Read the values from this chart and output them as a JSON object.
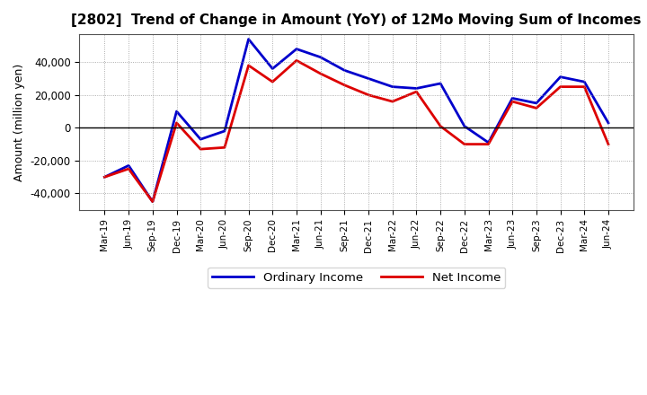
{
  "title": "[2802]  Trend of Change in Amount (YoY) of 12Mo Moving Sum of Incomes",
  "ylabel": "Amount (million yen)",
  "x_labels": [
    "Mar-19",
    "Jun-19",
    "Sep-19",
    "Dec-19",
    "Mar-20",
    "Jun-20",
    "Sep-20",
    "Dec-20",
    "Mar-21",
    "Jun-21",
    "Sep-21",
    "Dec-21",
    "Mar-22",
    "Jun-22",
    "Sep-22",
    "Dec-22",
    "Mar-23",
    "Jun-23",
    "Sep-23",
    "Dec-23",
    "Mar-24",
    "Jun-24"
  ],
  "ordinary_income": [
    -30000,
    -23000,
    -45000,
    10000,
    -7000,
    -2000,
    54000,
    36000,
    48000,
    43000,
    35000,
    30000,
    25000,
    24000,
    27000,
    1000,
    -9000,
    18000,
    15000,
    31000,
    28000,
    3000
  ],
  "net_income": [
    -30000,
    -25000,
    -45000,
    3000,
    -13000,
    -12000,
    38000,
    28000,
    41000,
    33000,
    26000,
    20000,
    16000,
    22000,
    1000,
    -10000,
    -10000,
    16000,
    12000,
    25000,
    25000,
    -10000
  ],
  "ordinary_income_color": "#0000cc",
  "net_income_color": "#dd0000",
  "ylim": [
    -50000,
    57000
  ],
  "yticks": [
    -40000,
    -20000,
    0,
    20000,
    40000
  ],
  "background_color": "#ffffff",
  "plot_bg_color": "#ffffff",
  "grid_color": "#999999",
  "legend_labels": [
    "Ordinary Income",
    "Net Income"
  ]
}
